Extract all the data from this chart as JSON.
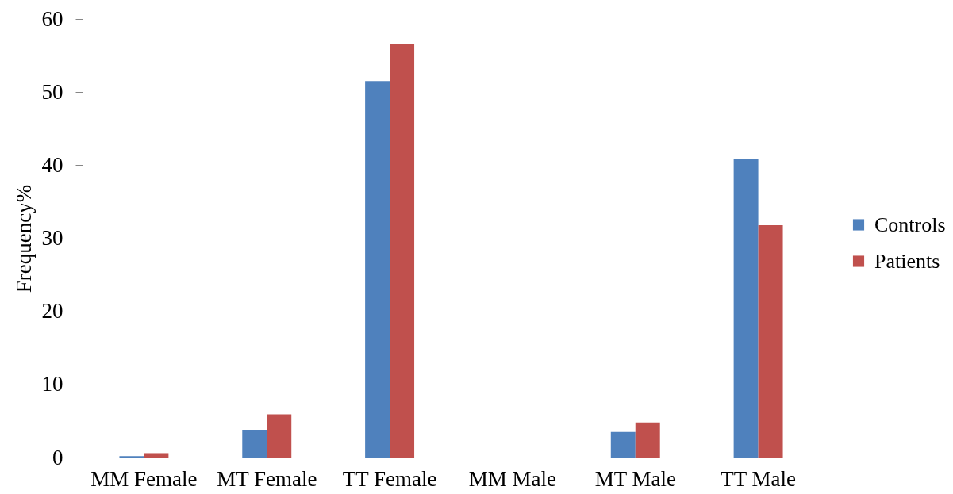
{
  "chart_data": {
    "type": "bar",
    "categories": [
      "MM Female",
      "MT Female",
      "TT Female",
      "MM Male",
      "MT Male",
      "TT Male"
    ],
    "series": [
      {
        "name": "Controls",
        "color": "#4f81bd",
        "values": [
          0.2,
          3.8,
          51.5,
          0,
          3.5,
          40.8
        ]
      },
      {
        "name": "Patients",
        "color": "#c0504d",
        "values": [
          0.6,
          5.9,
          56.6,
          0,
          4.8,
          31.8
        ]
      }
    ],
    "ylabel": "Frequency%",
    "ylim": [
      0,
      60
    ],
    "yticks": [
      0,
      10,
      20,
      30,
      40,
      50,
      60
    ],
    "grid": false,
    "legend": "right"
  }
}
